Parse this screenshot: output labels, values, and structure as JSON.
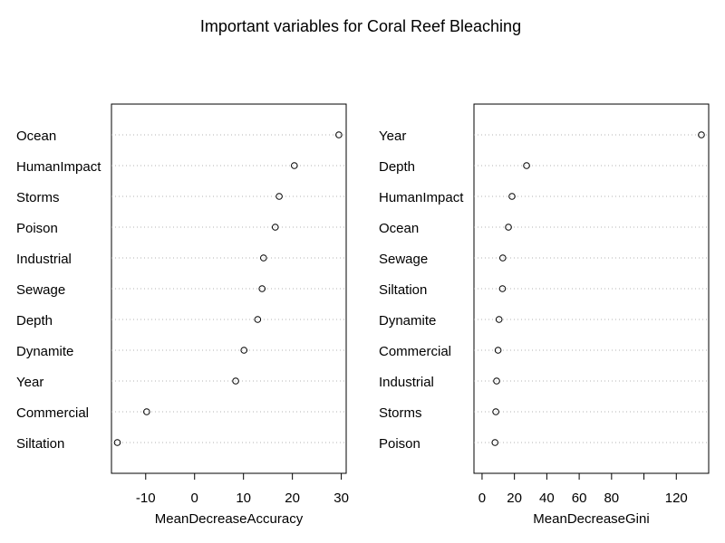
{
  "title": "Important variables for Coral Reef Bleaching",
  "chart_data": [
    {
      "type": "scatter",
      "subtype": "dotchart",
      "xlabel": "MeanDecreaseAccuracy",
      "xlim": [
        -17,
        31
      ],
      "xticks": [
        -10,
        0,
        10,
        20,
        30
      ],
      "grid": "dotted-horizontal",
      "points": [
        {
          "label": "Ocean",
          "value": 29.5
        },
        {
          "label": "HumanImpact",
          "value": 20.4
        },
        {
          "label": "Storms",
          "value": 17.3
        },
        {
          "label": "Poison",
          "value": 16.5
        },
        {
          "label": "Industrial",
          "value": 14.1
        },
        {
          "label": "Sewage",
          "value": 13.8
        },
        {
          "label": "Depth",
          "value": 12.9
        },
        {
          "label": "Dynamite",
          "value": 10.1
        },
        {
          "label": "Year",
          "value": 8.4
        },
        {
          "label": "Commercial",
          "value": -9.8
        },
        {
          "label": "Siltation",
          "value": -15.8
        }
      ]
    },
    {
      "type": "scatter",
      "subtype": "dotchart",
      "xlabel": "MeanDecreaseGini",
      "xlim": [
        -5,
        140
      ],
      "xticks": [
        0,
        20,
        40,
        60,
        80,
        100,
        120
      ],
      "xtick_labels": [
        "0",
        "20",
        "40",
        "60",
        "80",
        "",
        "120"
      ],
      "grid": "dotted-horizontal",
      "points": [
        {
          "label": "Year",
          "value": 135.5
        },
        {
          "label": "Depth",
          "value": 27.5
        },
        {
          "label": "HumanImpact",
          "value": 18.5
        },
        {
          "label": "Ocean",
          "value": 16.3
        },
        {
          "label": "Sewage",
          "value": 12.8
        },
        {
          "label": "Siltation",
          "value": 12.6
        },
        {
          "label": "Dynamite",
          "value": 10.5
        },
        {
          "label": "Commercial",
          "value": 9.9
        },
        {
          "label": "Industrial",
          "value": 9.0
        },
        {
          "label": "Storms",
          "value": 8.5
        },
        {
          "label": "Poison",
          "value": 8.0
        }
      ]
    }
  ]
}
